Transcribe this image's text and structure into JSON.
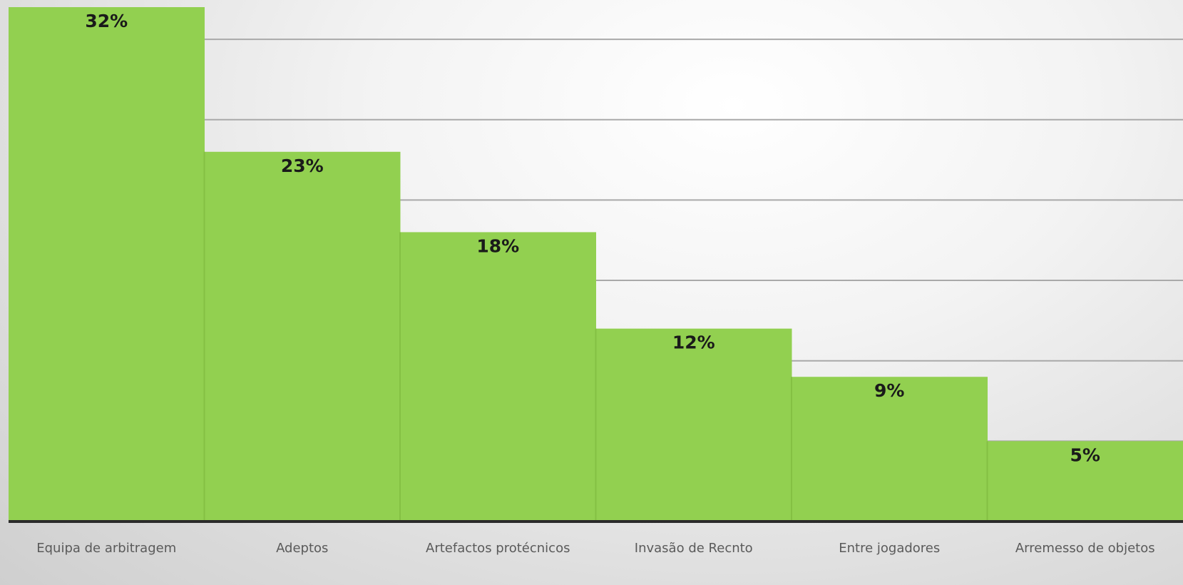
{
  "chart_data": {
    "type": "bar",
    "categories": [
      "Equipa de arbitragem",
      "Adeptos",
      "Artefactos protécnicos",
      "Invasão de Recnto",
      "Entre jogadores",
      "Arremesso de objetos"
    ],
    "values": [
      32,
      23,
      18,
      12,
      9,
      5
    ],
    "data_labels": [
      "32%",
      "23%",
      "18%",
      "12%",
      "9%",
      "5%"
    ],
    "unit": "%",
    "ylim": [
      0,
      32
    ],
    "grid": true,
    "legend": "none",
    "colors": {
      "bar": "#92d050",
      "gridline": "#a9a9a9",
      "axis": "#2b2b2b",
      "label": "#1a1a1a",
      "tick": "#5a5a5a"
    }
  }
}
